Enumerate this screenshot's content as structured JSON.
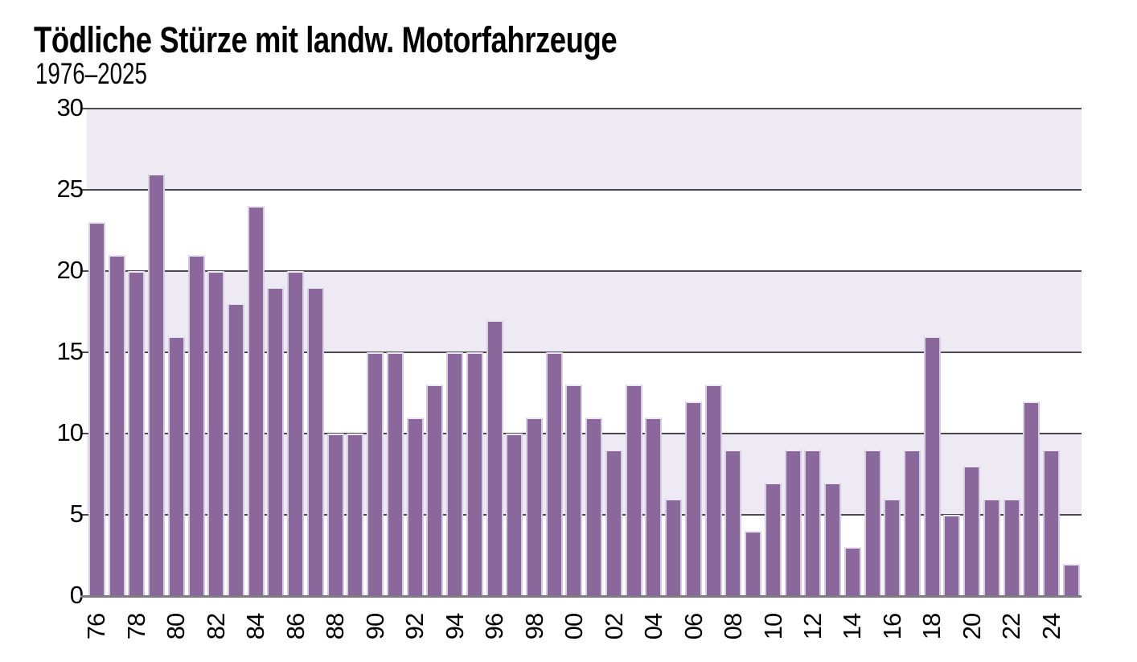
{
  "title": "Tödliche Stürze mit landw. Motorfahrzeuge",
  "subtitle": "1976–2025",
  "colors": {
    "bar": "#8B689C",
    "band_shaded": "#EDEAF4",
    "band_plain": "#FFFFFF",
    "gridline": "#4B4950",
    "axis_line": "#7D7B81",
    "text": "#000000"
  },
  "chart_data": {
    "type": "bar",
    "title": "Tödliche Stürze mit landw. Motorfahrzeuge",
    "subtitle": "1976–2025",
    "xlabel": "",
    "ylabel": "",
    "x": [
      1976,
      1977,
      1978,
      1979,
      1980,
      1981,
      1982,
      1983,
      1984,
      1985,
      1986,
      1987,
      1988,
      1989,
      1990,
      1991,
      1992,
      1993,
      1994,
      1995,
      1996,
      1997,
      1998,
      1999,
      2000,
      2001,
      2002,
      2003,
      2004,
      2005,
      2006,
      2007,
      2008,
      2009,
      2010,
      2011,
      2012,
      2013,
      2014,
      2015,
      2016,
      2017,
      2018,
      2019,
      2020,
      2021,
      2022,
      2023,
      2024,
      2025
    ],
    "values": [
      23,
      21,
      20,
      26,
      16,
      21,
      20,
      18,
      24,
      19,
      20,
      19,
      10,
      10,
      15,
      15,
      11,
      13,
      15,
      15,
      17,
      10,
      11,
      15,
      13,
      11,
      9,
      13,
      11,
      6,
      12,
      13,
      9,
      4,
      7,
      9,
      9,
      7,
      3,
      9,
      6,
      9,
      16,
      5,
      8,
      6,
      6,
      12,
      9,
      2
    ],
    "ylim": [
      0,
      30
    ],
    "yticks": [
      0,
      5,
      10,
      15,
      20,
      25,
      30
    ],
    "xtick_years": [
      1976,
      1978,
      1980,
      1982,
      1984,
      1986,
      1988,
      1990,
      1992,
      1994,
      1996,
      1998,
      2000,
      2002,
      2004,
      2006,
      2008,
      2010,
      2012,
      2014,
      2016,
      2018,
      2020,
      2022,
      2024
    ],
    "xtick_labels": [
      "76",
      "78",
      "80",
      "82",
      "84",
      "86",
      "88",
      "90",
      "92",
      "94",
      "96",
      "98",
      "00",
      "02",
      "04",
      "06",
      "08",
      "10",
      "12",
      "14",
      "16",
      "18",
      "20",
      "22",
      "24"
    ],
    "grid": "horizontal lines every 5, alternating shaded bands of 5 units",
    "legend": "none",
    "bar_orientation": "vertical",
    "xtick_label_rotation_deg": -90
  }
}
